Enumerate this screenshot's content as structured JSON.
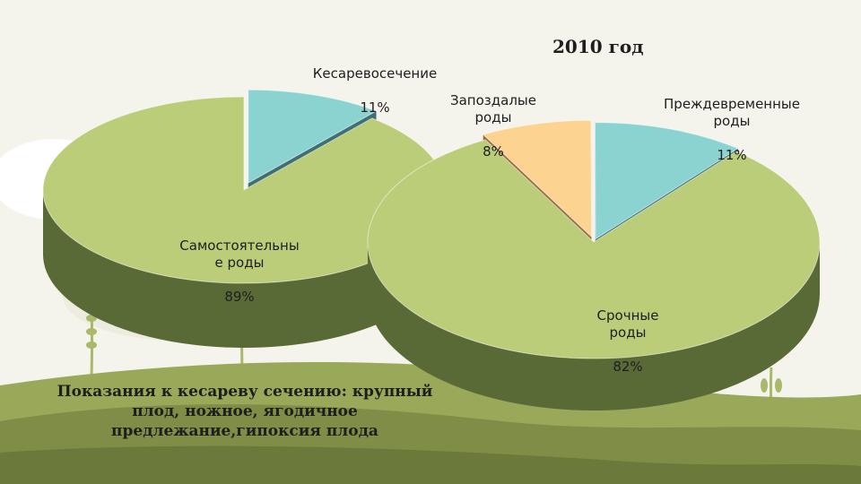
{
  "colors": {
    "green_top": "#bccd79",
    "green_side": "#5a6a37",
    "teal_top": "#8ad3d1",
    "teal_side": "#3e6f72",
    "orange_top": "#fdd391",
    "orange_side": "#9a6a38"
  },
  "chart_data": [
    {
      "type": "pie",
      "title": "",
      "slices": [
        {
          "label": "Кесаревосечение",
          "value": 11,
          "value_label": "11%",
          "color": "#8ad3d1"
        },
        {
          "label": "Самостоятельны\nе роды",
          "value": 89,
          "value_label": "89%",
          "color": "#bccd79"
        }
      ]
    },
    {
      "type": "pie",
      "title": "2010 год",
      "slices": [
        {
          "label": "Запоздалые\nроды",
          "value": 8,
          "value_label": "8%",
          "color": "#fdd391"
        },
        {
          "label": "Преждевременные\nроды",
          "value": 11,
          "value_label": "11%",
          "color": "#8ad3d1"
        },
        {
          "label": "Срочные\nроды",
          "value": 82,
          "value_label": "82%",
          "color": "#bccd79"
        }
      ]
    }
  ],
  "note": "Показания к кесареву сечению: крупный\nплод, ножное, ягодичное\nпредлежание,гипоксия плода"
}
